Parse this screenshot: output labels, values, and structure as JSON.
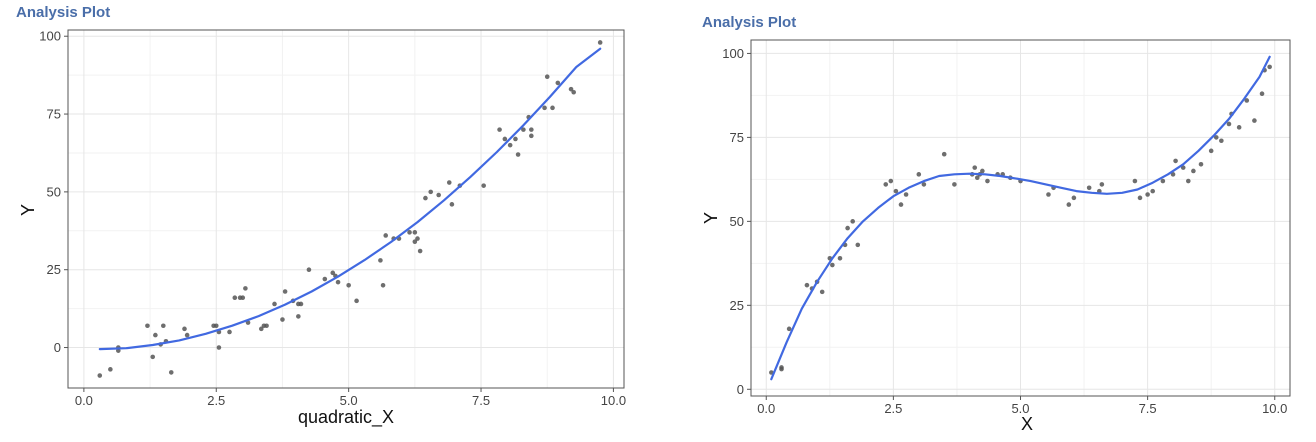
{
  "page": {
    "background": "#ffffff"
  },
  "chart_data": [
    {
      "type": "scatter",
      "title": "Analysis Plot",
      "xlabel": "quadratic_X",
      "ylabel": "Y",
      "xlim": [
        -0.3,
        10.2
      ],
      "ylim": [
        -13,
        102
      ],
      "xticks": [
        0,
        2.5,
        5,
        7.5,
        10
      ],
      "xtick_labels": [
        "0.0",
        "2.5",
        "5.0",
        "7.5",
        "10.0"
      ],
      "yticks": [
        0,
        25,
        50,
        75,
        100
      ],
      "ytick_labels": [
        "0",
        "25",
        "50",
        "75",
        "100"
      ],
      "grid": true,
      "legend": "none",
      "point_color": "#555555",
      "line_color": "#4169e1",
      "series": [
        {
          "type": "points",
          "x": [
            0.3,
            0.5,
            0.65,
            0.65,
            1.2,
            1.3,
            1.35,
            1.45,
            1.5,
            1.55,
            1.65,
            1.9,
            1.95,
            2.45,
            2.5,
            2.55,
            2.55,
            2.75,
            2.85,
            2.95,
            3.0,
            3.05,
            3.1,
            3.35,
            3.4,
            3.45,
            3.6,
            3.75,
            3.8,
            3.95,
            4.05,
            4.05,
            4.1,
            4.25,
            4.55,
            4.7,
            4.75,
            4.8,
            5.0,
            5.15,
            5.6,
            5.65,
            5.7,
            5.85,
            5.95,
            6.15,
            6.25,
            6.25,
            6.3,
            6.35,
            6.45,
            6.55,
            6.7,
            6.9,
            6.95,
            7.1,
            7.55,
            7.85,
            7.95,
            8.05,
            8.15,
            8.2,
            8.3,
            8.4,
            8.45,
            8.45,
            8.7,
            8.75,
            8.85,
            8.95,
            9.2,
            9.25,
            9.75
          ],
          "y": [
            -9,
            -7,
            0,
            -1,
            7,
            -3,
            4,
            1,
            7,
            2,
            -8,
            6,
            4,
            7,
            7,
            5,
            0,
            5,
            16,
            16,
            16,
            19,
            8,
            6,
            7,
            7,
            14,
            9,
            18,
            15,
            14,
            10,
            14,
            25,
            22,
            24,
            23,
            21,
            20,
            15,
            28,
            20,
            36,
            35,
            35,
            37,
            37,
            34,
            35,
            31,
            48,
            50,
            49,
            53,
            46,
            52,
            52,
            70,
            67,
            65,
            67,
            62,
            70,
            74,
            68,
            70,
            77,
            87,
            77,
            85,
            83,
            82,
            98
          ]
        },
        {
          "type": "line",
          "name": "fit",
          "x": [
            0.3,
            0.8,
            1.3,
            1.8,
            2.3,
            2.8,
            3.3,
            3.8,
            4.3,
            4.8,
            5.3,
            5.8,
            6.3,
            6.8,
            7.3,
            7.8,
            8.3,
            8.8,
            9.3,
            9.75
          ],
          "y": [
            -0.5,
            -0.2,
            0.8,
            2.3,
            4.4,
            7.0,
            10.1,
            13.8,
            18.0,
            22.8,
            28.1,
            33.9,
            40.3,
            47.3,
            54.8,
            62.8,
            71.4,
            80.5,
            90.1,
            96.0
          ]
        }
      ]
    },
    {
      "type": "scatter",
      "title": "Analysis Plot",
      "xlabel": "X",
      "ylabel": "Y",
      "xlim": [
        -0.3,
        10.3
      ],
      "ylim": [
        -2,
        104
      ],
      "xticks": [
        0,
        2.5,
        5,
        7.5,
        10
      ],
      "xtick_labels": [
        "0.0",
        "2.5",
        "5.0",
        "7.5",
        "10.0"
      ],
      "yticks": [
        0,
        25,
        50,
        75,
        100
      ],
      "ytick_labels": [
        "0",
        "25",
        "50",
        "75",
        "100"
      ],
      "grid": true,
      "legend": "none",
      "point_color": "#555555",
      "line_color": "#4169e1",
      "series": [
        {
          "type": "points",
          "x": [
            0.1,
            0.3,
            0.3,
            0.45,
            0.8,
            0.9,
            1.0,
            1.1,
            1.25,
            1.3,
            1.45,
            1.55,
            1.6,
            1.7,
            1.8,
            2.35,
            2.45,
            2.55,
            2.65,
            2.75,
            3.0,
            3.1,
            3.5,
            3.7,
            4.05,
            4.1,
            4.15,
            4.2,
            4.25,
            4.35,
            4.55,
            4.65,
            4.8,
            5.0,
            5.55,
            5.65,
            5.95,
            6.05,
            6.35,
            6.55,
            6.6,
            7.25,
            7.35,
            7.5,
            7.6,
            7.8,
            8.0,
            8.05,
            8.2,
            8.3,
            8.4,
            8.55,
            8.75,
            8.85,
            8.95,
            9.1,
            9.15,
            9.3,
            9.45,
            9.6,
            9.75,
            9.8,
            9.9
          ],
          "y": [
            5,
            6,
            6.5,
            18,
            31,
            30,
            32,
            29,
            39,
            37,
            39,
            43,
            48,
            50,
            43,
            61,
            62,
            59,
            55,
            58,
            64,
            61,
            70,
            61,
            64,
            66,
            63,
            64,
            65,
            62,
            64,
            64,
            63,
            62,
            58,
            60,
            55,
            57,
            60,
            59,
            61,
            62,
            57,
            58,
            59,
            62,
            64,
            68,
            66,
            62,
            65,
            67,
            71,
            75,
            74,
            79,
            82,
            78,
            86,
            80,
            88,
            95,
            96
          ]
        },
        {
          "type": "line",
          "name": "fit",
          "x": [
            0.1,
            0.4,
            0.7,
            1.0,
            1.3,
            1.6,
            1.9,
            2.2,
            2.5,
            2.8,
            3.1,
            3.4,
            3.7,
            4.0,
            4.3,
            4.6,
            4.9,
            5.2,
            5.5,
            5.8,
            6.1,
            6.4,
            6.7,
            7.0,
            7.3,
            7.6,
            7.9,
            8.2,
            8.5,
            8.8,
            9.1,
            9.4,
            9.7,
            9.9
          ],
          "y": [
            3,
            14,
            24,
            32,
            39,
            45,
            50,
            54,
            57.5,
            60,
            62,
            63.5,
            64,
            64.2,
            64,
            63.5,
            62.8,
            62,
            61,
            60,
            59,
            58.5,
            58.2,
            58.5,
            59.5,
            61.5,
            64,
            67,
            71,
            75.5,
            80.5,
            86.5,
            93,
            99
          ]
        }
      ]
    }
  ]
}
